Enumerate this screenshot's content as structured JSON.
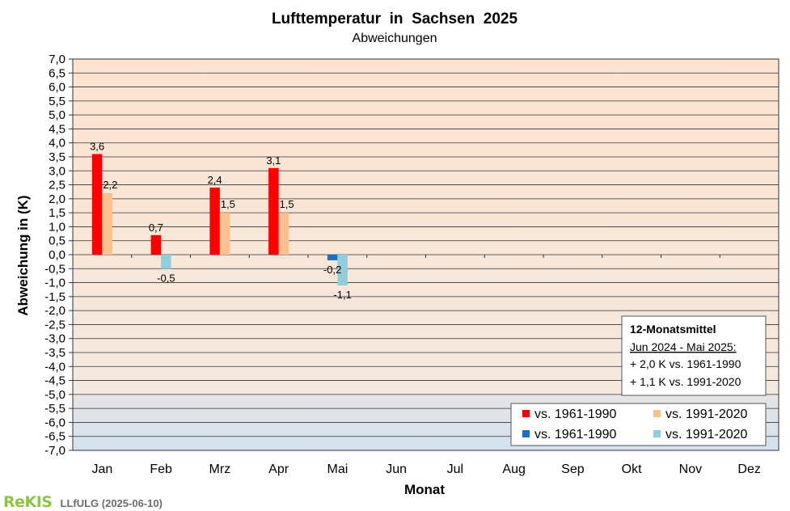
{
  "chart_data": {
    "type": "bar",
    "title": "Lufttemperatur  in  Sachsen  2025",
    "subtitle": "Abweichungen",
    "xlabel": "Monat",
    "ylabel": "Abweichung in (K)",
    "ylim": [
      -7.0,
      7.0
    ],
    "ytick_step": 0.5,
    "grid": true,
    "categories": [
      "Jan",
      "Feb",
      "Mrz",
      "Apr",
      "Mai",
      "Jun",
      "Jul",
      "Aug",
      "Sep",
      "Okt",
      "Nov",
      "Dez"
    ],
    "series": [
      {
        "name": "vs. 1961-1990",
        "values": [
          3.6,
          0.7,
          2.4,
          3.1,
          -0.2,
          null,
          null,
          null,
          null,
          null,
          null,
          null
        ],
        "labels": [
          "3,6",
          "0,7",
          "2,4",
          "3,1",
          "-0,2",
          "",
          "",
          "",
          "",
          "",
          "",
          ""
        ],
        "color_positive": "#ff0000",
        "color_negative": "#1f6fbf"
      },
      {
        "name": "vs. 1991-2020",
        "values": [
          2.2,
          -0.5,
          1.5,
          1.5,
          -1.1,
          null,
          null,
          null,
          null,
          null,
          null,
          null
        ],
        "labels": [
          "2,2",
          "-0,5",
          "1,5",
          "1,5",
          "-1,1",
          "",
          "",
          "",
          "",
          "",
          "",
          ""
        ],
        "color_positive": "#fac090",
        "color_negative": "#92cddc"
      }
    ],
    "legend": {
      "placement": "bottom-right",
      "entries": [
        {
          "label": "vs. 1961-1990",
          "color": "#ff0000"
        },
        {
          "label": "vs. 1991-2020",
          "color": "#fac090"
        },
        {
          "label": "vs. 1961-1990",
          "color": "#1f6fbf"
        },
        {
          "label": "vs. 1991-2020",
          "color": "#92cddc"
        }
      ]
    },
    "annotation": {
      "title": "12-Monatsmittel",
      "period": "Jun 2024 - Mai 2025:",
      "lines": [
        "+ 2,0 K vs. 1961-1990",
        "+ 1,1 K vs. 1991-2020"
      ]
    },
    "background": {
      "warm_top": "#fde3cf",
      "warm_mid": "#f4e8df",
      "cool_top": "#e6e4e6",
      "cool_bottom": "#d3e1ee",
      "zone_boundary_value": -5.0
    }
  },
  "footer": {
    "logo": "ReKIS",
    "credit": "LLfULG (2025-06-10)"
  }
}
